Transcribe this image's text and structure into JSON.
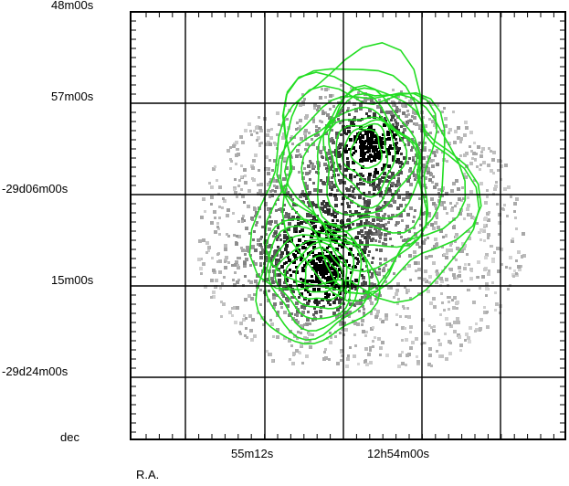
{
  "axes": {
    "dec_labels": [
      "48m00s",
      "57m00s",
      "-29d06m00s",
      "15m00s",
      "-29d24m00s"
    ],
    "ra_labels": [
      "55m12s",
      "12h54m00s"
    ],
    "dec_axis_title": "dec",
    "ra_axis_title": "R.A."
  },
  "overlay": {
    "contour_color": "#22dd22",
    "grid_color": "#000000",
    "background_color": "#ffffff"
  }
}
